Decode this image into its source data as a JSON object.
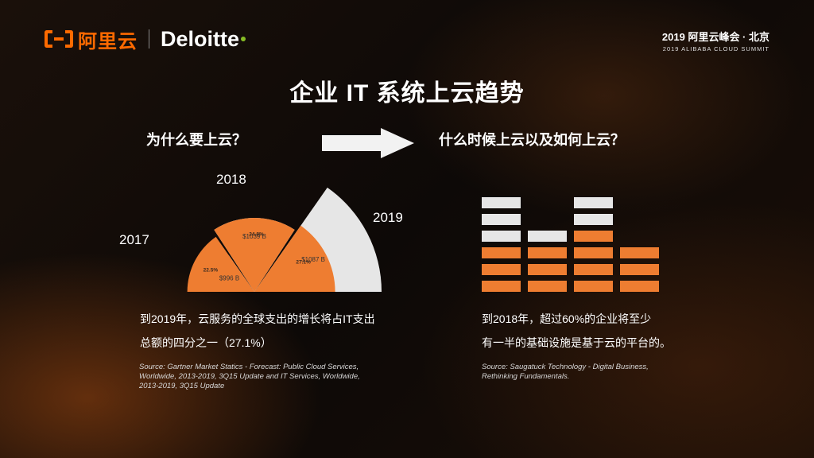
{
  "header": {
    "alibaba_text": "阿里云",
    "deloitte_text": "Deloitte",
    "summit_cn": "2019 阿里云峰会 · 北京",
    "summit_en": "2019 ALIBABA CLOUD SUMMIT"
  },
  "title": "企业 IT 系统上云趋势",
  "left": {
    "question": "为什么要上云？",
    "years": [
      "2017",
      "2018",
      "2019"
    ],
    "spend_labels": [
      "$996 B",
      "$1039 B",
      "$1087 B"
    ],
    "share_labels": [
      "22.5%",
      "24.8%",
      "27.1%"
    ],
    "body_lines": [
      "到2019年，云服务的全球支出的增长将占IT支出",
      "总额的四分之一（27.1%）"
    ],
    "source_lines": [
      "Source: Gartner Market Statics - Forecast: Public Cloud Services,",
      "Worldwide, 2013-2019, 3Q15 Update and IT Services, Worldwide,",
      "2013-2019, 3Q15 Update"
    ]
  },
  "right": {
    "question": "什么时候上云以及如何上云？",
    "body_lines": [
      "到2018年，超过60%的企业将至少",
      "有一半的基础设施是基于云的平台的。"
    ],
    "source_lines": [
      "Source: Saugatuck Technology - Digital Business,",
      "Rethinking Fundamentals."
    ]
  },
  "chart_data": [
    {
      "type": "pie",
      "title": "",
      "categories": [
        "2017",
        "2018",
        "2019"
      ],
      "series": [
        {
          "values": [
            996,
            1039,
            1087
          ]
        },
        {
          "values": [
            22.5,
            24.8,
            27.1
          ]
        }
      ]
    }
  ],
  "colors": {
    "accent": "#ee7d31",
    "light": "#e6e6e6",
    "alibaba": "#ff6a00",
    "deloitte_dot": "#86bc25"
  },
  "icons": [
    "alibaba-cloud-logo",
    "arrow-right-icon"
  ]
}
